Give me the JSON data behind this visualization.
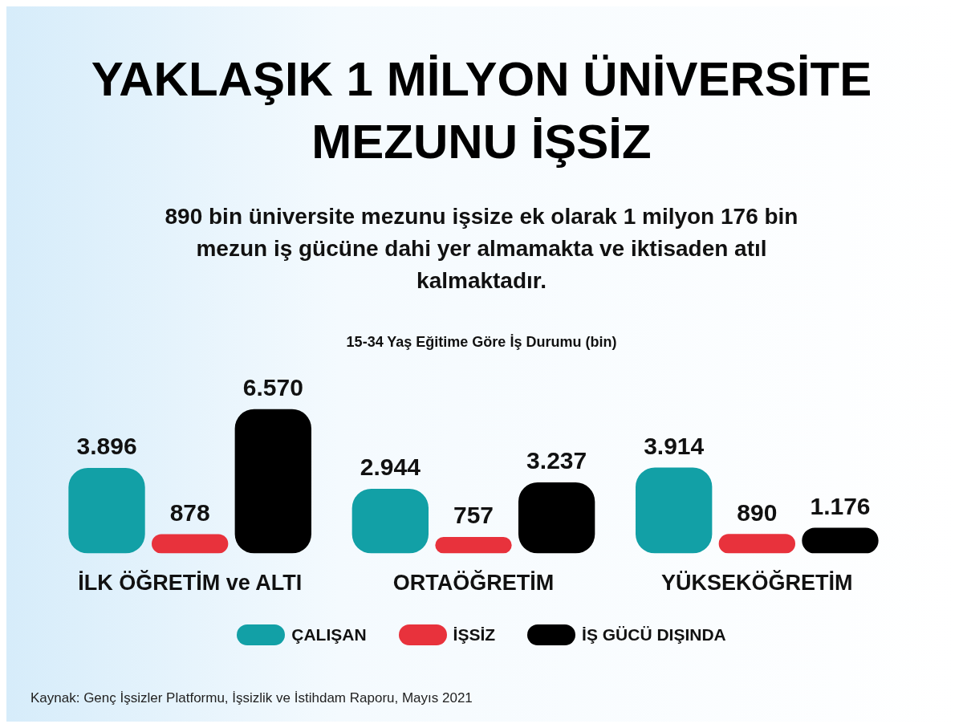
{
  "chart_data": {
    "type": "bar",
    "title": "YAKLAŞIK 1 MİLYON ÜNİVERSİTE MEZUNU İŞSİZ",
    "subtitle": "890 bin üniversite mezunu işsize ek olarak 1 milyon 176 bin mezun iş gücüne dahi yer almamakta ve iktisaden atıl kalmaktadır.",
    "legend": "bottom",
    "categories": [
      "İLK ÖĞRETİM ve ALTI",
      "ORTAÖĞRETİM",
      "YÜKSEKÖĞRETİM"
    ],
    "series": [
      {
        "name": "ÇALIŞAN",
        "color": "#12a0a6",
        "values": [
          3896,
          2944,
          3914
        ],
        "value_labels": [
          "3.896",
          "2.944",
          "3.914"
        ]
      },
      {
        "name": "İŞSİZ",
        "color": "#e8323c",
        "values": [
          878,
          757,
          890
        ],
        "value_labels": [
          "878",
          "757",
          "890"
        ]
      },
      {
        "name": "İŞ GÜCÜ DIŞINDA",
        "color": "#000000",
        "values": [
          6570,
          3237,
          1176
        ],
        "value_labels": [
          "6.570",
          "3.237",
          "1.176"
        ]
      }
    ],
    "annotations": [
      "15-34 Yaş Eğitime Göre İş Durumu (bin)",
      "Kaynak: Genç İşsizler Platformu, İşsizlik ve İstihdam Raporu, Mayıs 2021"
    ]
  }
}
